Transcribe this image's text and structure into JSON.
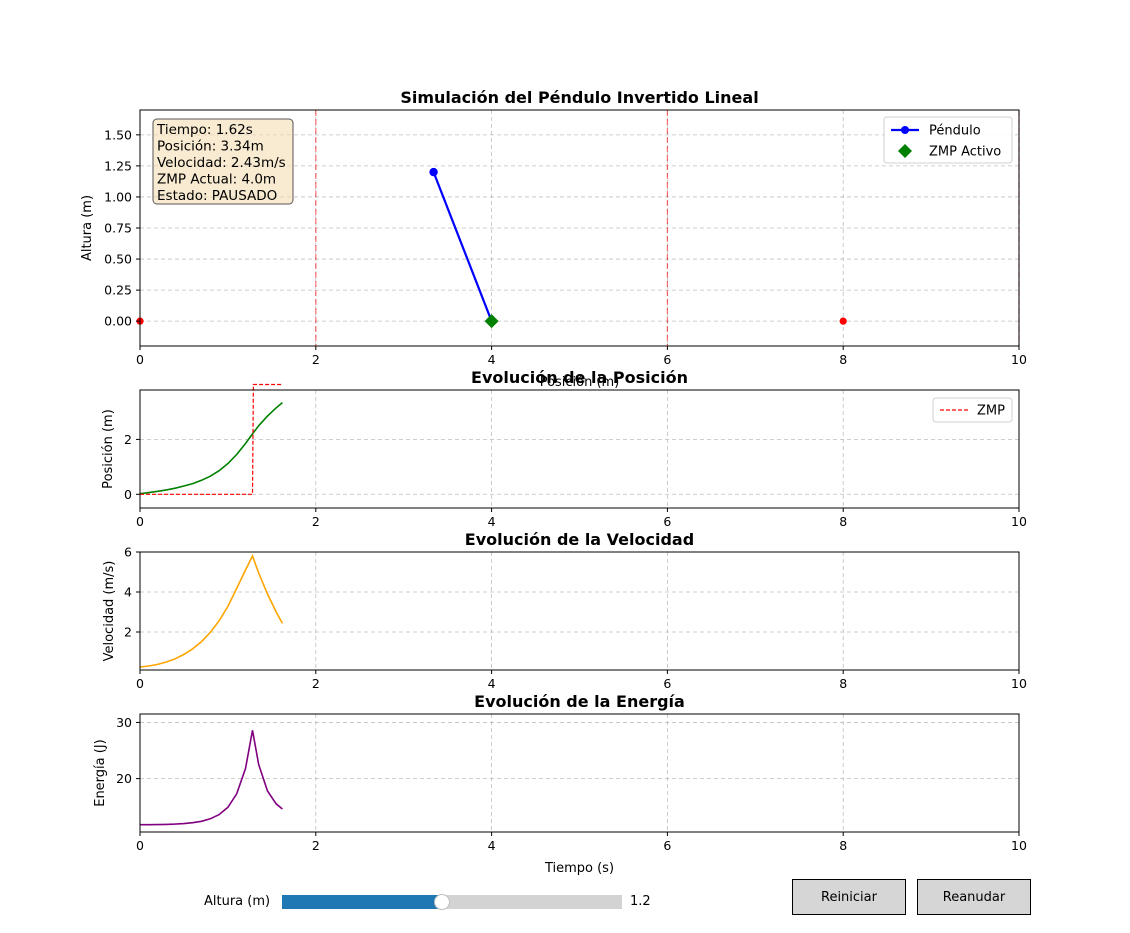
{
  "chart_data": [
    {
      "type": "line",
      "title": "Simulación del Péndulo Invertido Lineal",
      "xlabel": "Posición (m)",
      "ylabel": "Altura (m)",
      "xlim": [
        0,
        10
      ],
      "ylim": [
        -0.2,
        1.7
      ],
      "xticks": [
        0,
        2,
        4,
        6,
        8,
        10
      ],
      "yticks": [
        0.0,
        0.25,
        0.5,
        0.75,
        1.0,
        1.25,
        1.5
      ],
      "ytick_labels": [
        "0.00",
        "0.25",
        "0.50",
        "0.75",
        "1.00",
        "1.25",
        "1.50"
      ],
      "grid": true,
      "legend_position": "top-right",
      "series": [
        {
          "name": "Péndulo",
          "color": "#0000ff",
          "x": [
            3.34,
            4.0
          ],
          "y": [
            1.2,
            0.0
          ]
        },
        {
          "name": "ZMP Activo",
          "color": "#008000",
          "x": [
            4.0
          ],
          "y": [
            0.0
          ]
        }
      ],
      "footstep_markers": {
        "color": "#ff0000",
        "x": [
          0,
          8
        ],
        "y": [
          0,
          0
        ]
      },
      "footstep_lines": {
        "color": "#ff0000",
        "x": [
          2,
          6,
          10
        ]
      },
      "info_box": [
        "Tiempo: 1.62s",
        "Posición: 3.34m",
        "Velocidad: 2.43m/s",
        "ZMP Actual: 4.0m",
        "Estado: PAUSADO"
      ]
    },
    {
      "type": "line",
      "title": "Evolución de la Posición",
      "xlabel": "",
      "ylabel": "Posición (m)",
      "xlim": [
        0,
        10
      ],
      "ylim": [
        -0.5,
        3.8
      ],
      "xticks": [
        0,
        2,
        4,
        6,
        8,
        10
      ],
      "yticks": [
        0,
        2
      ],
      "grid": true,
      "legend_position": "top-right",
      "series": [
        {
          "color": "#008000",
          "x": [
            0,
            0.1,
            0.2,
            0.3,
            0.4,
            0.5,
            0.6,
            0.7,
            0.8,
            0.9,
            1.0,
            1.1,
            1.2,
            1.28,
            1.35,
            1.45,
            1.55,
            1.62
          ],
          "y": [
            0.02,
            0.06,
            0.11,
            0.16,
            0.22,
            0.3,
            0.39,
            0.51,
            0.66,
            0.86,
            1.12,
            1.45,
            1.85,
            2.2,
            2.5,
            2.85,
            3.15,
            3.34
          ]
        },
        {
          "name": "ZMP",
          "color": "#ff0000",
          "dashed": true,
          "x": [
            0,
            1.28,
            1.29,
            1.62
          ],
          "y": [
            0,
            0,
            4.0,
            4.0
          ]
        }
      ]
    },
    {
      "type": "line",
      "title": "Evolución de la Velocidad",
      "xlabel": "",
      "ylabel": "Velocidad (m/s)",
      "xlim": [
        0,
        10
      ],
      "ylim": [
        0.1,
        6.0
      ],
      "xticks": [
        0,
        2,
        4,
        6,
        8,
        10
      ],
      "yticks": [
        2,
        4,
        6
      ],
      "grid": true,
      "series": [
        {
          "color": "#ffa500",
          "x": [
            0,
            0.1,
            0.2,
            0.3,
            0.4,
            0.5,
            0.6,
            0.7,
            0.8,
            0.9,
            1.0,
            1.1,
            1.2,
            1.28,
            1.35,
            1.45,
            1.55,
            1.62
          ],
          "y": [
            0.25,
            0.3,
            0.38,
            0.5,
            0.66,
            0.88,
            1.16,
            1.52,
            1.98,
            2.56,
            3.28,
            4.18,
            5.1,
            5.8,
            4.95,
            3.9,
            3.0,
            2.43
          ]
        }
      ]
    },
    {
      "type": "line",
      "title": "Evolución de la Energía",
      "xlabel": "Tiempo (s)",
      "ylabel": "Energía (J)",
      "xlim": [
        0,
        10
      ],
      "ylim": [
        10.5,
        31.5
      ],
      "xticks": [
        0,
        2,
        4,
        6,
        8,
        10
      ],
      "yticks": [
        20,
        30
      ],
      "grid": true,
      "series": [
        {
          "color": "#800080",
          "x": [
            0,
            0.1,
            0.2,
            0.3,
            0.4,
            0.5,
            0.6,
            0.7,
            0.8,
            0.9,
            1.0,
            1.1,
            1.2,
            1.28,
            1.35,
            1.45,
            1.55,
            1.62
          ],
          "y": [
            11.8,
            11.8,
            11.82,
            11.85,
            11.9,
            12.0,
            12.15,
            12.4,
            12.85,
            13.6,
            14.9,
            17.3,
            21.8,
            28.6,
            22.5,
            17.8,
            15.5,
            14.6
          ]
        }
      ]
    }
  ],
  "controls": {
    "slider_label": "Altura (m)",
    "slider_value": "1.2",
    "slider_min": 0.5,
    "slider_max": 2.0,
    "slider_current": 1.2,
    "reset_label": "Reiniciar",
    "resume_label": "Reanudar"
  }
}
